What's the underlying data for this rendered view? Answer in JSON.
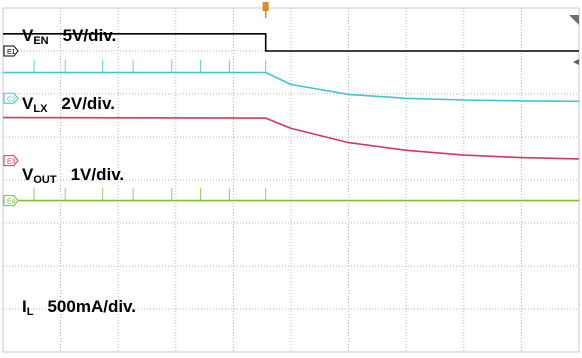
{
  "chart_data": {
    "type": "line",
    "title": "",
    "grid": true,
    "x_grid_divisions": 10,
    "y_grid_divisions": 8,
    "trigger_position_div": 4.56,
    "series": [
      {
        "name": "EN",
        "label_main": "V",
        "label_sub": "EN",
        "scale": "5V/div.",
        "color": "#000000",
        "channel_marker": "E1",
        "baseline_div": 1.0,
        "high_div": 0.6,
        "behavior": "steps from high to low level at trigger",
        "points": [
          [
            0,
            0.6
          ],
          [
            4.56,
            0.6
          ],
          [
            4.56,
            1.0
          ],
          [
            10,
            1.0
          ]
        ]
      },
      {
        "name": "LX",
        "label_main": "V",
        "label_sub": "LX",
        "scale": "2V/div.",
        "color": "#3fc6d0",
        "channel_marker": "C2",
        "baseline_div": 2.1,
        "spike_times_div": [
          0.54,
          1.08,
          1.73,
          2.26,
          2.93,
          3.43,
          3.93,
          4.56
        ],
        "spike_top_div": 1.2,
        "points": [
          [
            0,
            1.5
          ],
          [
            4.56,
            1.5
          ],
          [
            5.0,
            1.78
          ],
          [
            6.0,
            2.01
          ],
          [
            7.0,
            2.1
          ],
          [
            8.0,
            2.14
          ],
          [
            9.0,
            2.16
          ],
          [
            10,
            2.17
          ]
        ]
      },
      {
        "name": "OUT",
        "label_main": "V",
        "label_sub": "OUT",
        "scale": "1V/div.",
        "color": "#d4395a",
        "channel_marker": "E3",
        "baseline_div": 3.55,
        "points": [
          [
            0,
            2.55
          ],
          [
            4.56,
            2.56
          ],
          [
            5.0,
            2.8
          ],
          [
            6.0,
            3.13
          ],
          [
            7.0,
            3.31
          ],
          [
            8.0,
            3.42
          ],
          [
            9.0,
            3.48
          ],
          [
            10,
            3.51
          ]
        ]
      },
      {
        "name": "L",
        "label_main": "I",
        "label_sub": "L",
        "scale": "500mA/div.",
        "color": "#7cc23a",
        "channel_marker": "E4",
        "baseline_div": 4.48,
        "spike_times_div": [
          0.54,
          1.08,
          1.73,
          2.26,
          2.93,
          3.43,
          3.93,
          4.56
        ],
        "spike_top_div": 4.18,
        "points": [
          [
            0,
            4.48
          ],
          [
            10,
            4.48
          ]
        ]
      }
    ]
  }
}
